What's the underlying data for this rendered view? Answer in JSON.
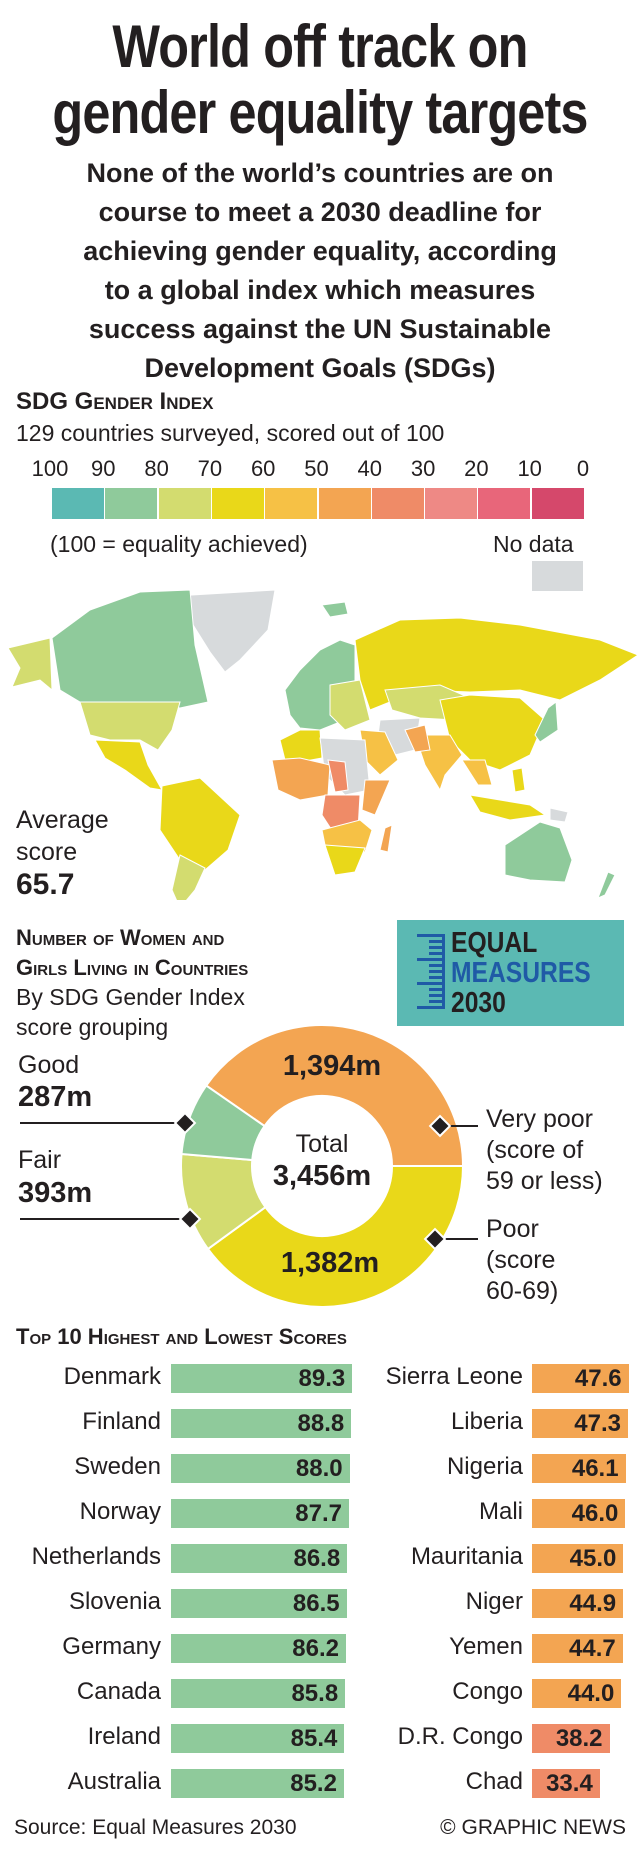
{
  "title": {
    "line1": "World off track on",
    "line2": "gender equality targets"
  },
  "subtitle": {
    "lines": [
      "None of the world’s countries are on",
      "course to meet a 2030 deadline for",
      "achieving gender equality, according",
      "to a global index which measures",
      "success against the UN Sustainable",
      "Development Goals (SDGs)"
    ]
  },
  "index": {
    "heading": "SDG Gender Index",
    "subheading": "129 countries surveyed, scored out of 100",
    "scale_labels": [
      "100",
      "90",
      "80",
      "70",
      "60",
      "50",
      "40",
      "30",
      "20",
      "10",
      "0"
    ],
    "scale_colors": [
      "#5bb9b3",
      "#8fca9b",
      "#d3dc6f",
      "#e9d819",
      "#f6c145",
      "#f3a552",
      "#ef8b67",
      "#ee8985",
      "#e8667a",
      "#d5486b"
    ],
    "note": "(100 = equality achieved)",
    "no_data_label": "No data",
    "no_data_color": "#d7dadc",
    "average_label_1": "Average",
    "average_label_2": "score",
    "average_value": "65.7"
  },
  "women": {
    "heading_1": "Number of Women and",
    "heading_2": "Girls Living in Countries",
    "sub_1": "By SDG Gender Index",
    "sub_2": "score grouping",
    "logo": {
      "line1": "EQUAL",
      "line2": "MEASURES",
      "line3": "2030",
      "bg": "#5bb9b3",
      "blue": "#1f5aa6"
    }
  },
  "chart_data": [
    {
      "type": "pie",
      "title": "Number of women and girls living in countries by SDG Gender Index score grouping",
      "center_label": "Total",
      "total": "3,456m",
      "unit": "millions",
      "slices": [
        {
          "name": "Very poor",
          "desc_1": "Very poor",
          "desc_2": "(score of",
          "desc_3": "59 or less)",
          "value": 1394,
          "label": "1,394m",
          "color": "#f3a552"
        },
        {
          "name": "Poor",
          "desc_1": "Poor",
          "desc_2": "(score",
          "desc_3": "60-69)",
          "value": 1382,
          "label": "1,382m",
          "color": "#e9d819"
        },
        {
          "name": "Fair",
          "desc_1": "Fair",
          "value": 393,
          "label": "393m",
          "color": "#d3dc6f"
        },
        {
          "name": "Good",
          "desc_1": "Good",
          "value": 287,
          "label": "287m",
          "color": "#8fca9b"
        }
      ]
    },
    {
      "type": "bar",
      "title": "Top 10 Highest and Lowest Scores",
      "highest": {
        "categories": [
          "Denmark",
          "Finland",
          "Sweden",
          "Norway",
          "Netherlands",
          "Slovenia",
          "Germany",
          "Canada",
          "Ireland",
          "Australia"
        ],
        "values": [
          "89.3",
          "88.8",
          "88.0",
          "87.7",
          "86.8",
          "86.5",
          "86.2",
          "85.8",
          "85.4",
          "85.2"
        ],
        "colors": [
          "#8fca9b",
          "#8fca9b",
          "#8fca9b",
          "#8fca9b",
          "#8fca9b",
          "#8fca9b",
          "#8fca9b",
          "#8fca9b",
          "#8fca9b",
          "#8fca9b"
        ]
      },
      "lowest": {
        "categories": [
          "Sierra Leone",
          "Liberia",
          "Nigeria",
          "Mali",
          "Mauritania",
          "Niger",
          "Yemen",
          "Congo",
          "D.R. Congo",
          "Chad"
        ],
        "values": [
          "47.6",
          "47.3",
          "46.1",
          "46.0",
          "45.0",
          "44.9",
          "44.7",
          "44.0",
          "38.2",
          "33.4"
        ],
        "colors": [
          "#f3a552",
          "#f3a552",
          "#f3a552",
          "#f3a552",
          "#f3a552",
          "#f3a552",
          "#f3a552",
          "#f3a552",
          "#ef8b67",
          "#ef8b67"
        ]
      },
      "xlim": [
        0,
        100
      ]
    }
  ],
  "footer": {
    "source": "Source: Equal Measures 2030",
    "credit": "© GRAPHIC NEWS"
  }
}
